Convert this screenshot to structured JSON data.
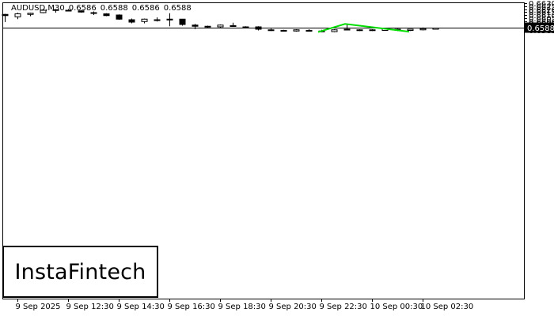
{
  "header": {
    "symbol": "AUDUSD,M30",
    "open": "0.6586",
    "high": "0.6588",
    "low": "0.6586",
    "close": "0.6588"
  },
  "logo_text": "InstaFintech",
  "current_price_label": "0.6588",
  "colors": {
    "pattern_line": "#00dd00",
    "axis": "#000000",
    "bull_candle": "#ffffff",
    "bear_candle": "#000000",
    "price_tag_bg": "#000000",
    "price_tag_text": "#ffffff"
  },
  "chart_data": {
    "type": "candlestick",
    "symbol": "AUDUSD",
    "timeframe": "M30",
    "ylim": [
      0.65795,
      0.663
    ],
    "y_ticks": [
      "0.6585",
      "0.6590",
      "0.6595",
      "0.6600",
      "0.6605",
      "0.6610",
      "0.6615",
      "0.6620",
      "0.6625",
      "0.6630"
    ],
    "x_ticks": [
      {
        "label": "9 Sep 2025",
        "index": 1
      },
      {
        "label": "9 Sep 12:30",
        "index": 5
      },
      {
        "label": "9 Sep 14:30",
        "index": 9
      },
      {
        "label": "9 Sep 16:30",
        "index": 13
      },
      {
        "label": "9 Sep 18:30",
        "index": 17
      },
      {
        "label": "9 Sep 20:30",
        "index": 21
      },
      {
        "label": "9 Sep 22:30",
        "index": 25
      },
      {
        "label": "10 Sep 00:30",
        "index": 29
      },
      {
        "label": "10 Sep 02:30",
        "index": 33
      }
    ],
    "current_price": 0.6588,
    "candles": [
      {
        "o": 0.6611,
        "h": 0.6612,
        "l": 0.6598,
        "c": 0.6609
      },
      {
        "o": 0.6607,
        "h": 0.6614,
        "l": 0.6603,
        "c": 0.6612
      },
      {
        "o": 0.6611,
        "h": 0.6614,
        "l": 0.6608,
        "c": 0.6613
      },
      {
        "o": 0.6614,
        "h": 0.662,
        "l": 0.6613,
        "c": 0.6618
      },
      {
        "o": 0.6619,
        "h": 0.662,
        "l": 0.6614,
        "c": 0.6619
      },
      {
        "o": 0.6618,
        "h": 0.662,
        "l": 0.6616,
        "c": 0.6618
      },
      {
        "o": 0.6617,
        "h": 0.6618,
        "l": 0.6614,
        "c": 0.6615
      },
      {
        "o": 0.6614,
        "h": 0.6616,
        "l": 0.661,
        "c": 0.6613
      },
      {
        "o": 0.6612,
        "h": 0.6613,
        "l": 0.6608,
        "c": 0.6609
      },
      {
        "o": 0.661,
        "h": 0.6611,
        "l": 0.6602,
        "c": 0.6603
      },
      {
        "o": 0.6602,
        "h": 0.6604,
        "l": 0.6596,
        "c": 0.6598
      },
      {
        "o": 0.6599,
        "h": 0.6604,
        "l": 0.6596,
        "c": 0.6603
      },
      {
        "o": 0.6602,
        "h": 0.6606,
        "l": 0.6599,
        "c": 0.6602
      },
      {
        "o": 0.6603,
        "h": 0.6613,
        "l": 0.6591,
        "c": 0.6602
      },
      {
        "o": 0.6603,
        "h": 0.6603,
        "l": 0.6592,
        "c": 0.6594
      },
      {
        "o": 0.6593,
        "h": 0.6595,
        "l": 0.6586,
        "c": 0.6591
      },
      {
        "o": 0.659,
        "h": 0.6592,
        "l": 0.6588,
        "c": 0.6591
      },
      {
        "o": 0.659,
        "h": 0.6594,
        "l": 0.6588,
        "c": 0.6593
      },
      {
        "o": 0.6592,
        "h": 0.6597,
        "l": 0.659,
        "c": 0.6591
      },
      {
        "o": 0.659,
        "h": 0.6591,
        "l": 0.6588,
        "c": 0.6589
      },
      {
        "o": 0.659,
        "h": 0.6591,
        "l": 0.6584,
        "c": 0.6586
      },
      {
        "o": 0.6585,
        "h": 0.6587,
        "l": 0.6583,
        "c": 0.6585
      },
      {
        "o": 0.6584,
        "h": 0.6585,
        "l": 0.6582,
        "c": 0.6584
      },
      {
        "o": 0.6583,
        "h": 0.6586,
        "l": 0.6582,
        "c": 0.6585
      },
      {
        "o": 0.6584,
        "h": 0.6586,
        "l": 0.6582,
        "c": 0.6584
      },
      {
        "o": 0.6583,
        "h": 0.6585,
        "l": 0.6581,
        "c": 0.6583
      },
      {
        "o": 0.6582,
        "h": 0.6586,
        "l": 0.6581,
        "c": 0.6585
      },
      {
        "o": 0.6586,
        "h": 0.6595,
        "l": 0.6584,
        "c": 0.6585
      },
      {
        "o": 0.6585,
        "h": 0.6586,
        "l": 0.6583,
        "c": 0.6585
      },
      {
        "o": 0.6584,
        "h": 0.6586,
        "l": 0.6583,
        "c": 0.6585
      },
      {
        "o": 0.6584,
        "h": 0.6588,
        "l": 0.6584,
        "c": 0.6587
      },
      {
        "o": 0.6586,
        "h": 0.6587,
        "l": 0.6583,
        "c": 0.6585
      },
      {
        "o": 0.6584,
        "h": 0.6586,
        "l": 0.6583,
        "c": 0.6586
      },
      {
        "o": 0.6585,
        "h": 0.6589,
        "l": 0.6584,
        "c": 0.6587
      },
      {
        "o": 0.6586,
        "h": 0.6588,
        "l": 0.6586,
        "c": 0.6588
      }
    ],
    "pattern": {
      "points": [
        {
          "index": 25,
          "price": 0.65812
        },
        {
          "index": 27,
          "price": 0.6595
        },
        {
          "index": 32,
          "price": 0.65818
        }
      ]
    }
  }
}
